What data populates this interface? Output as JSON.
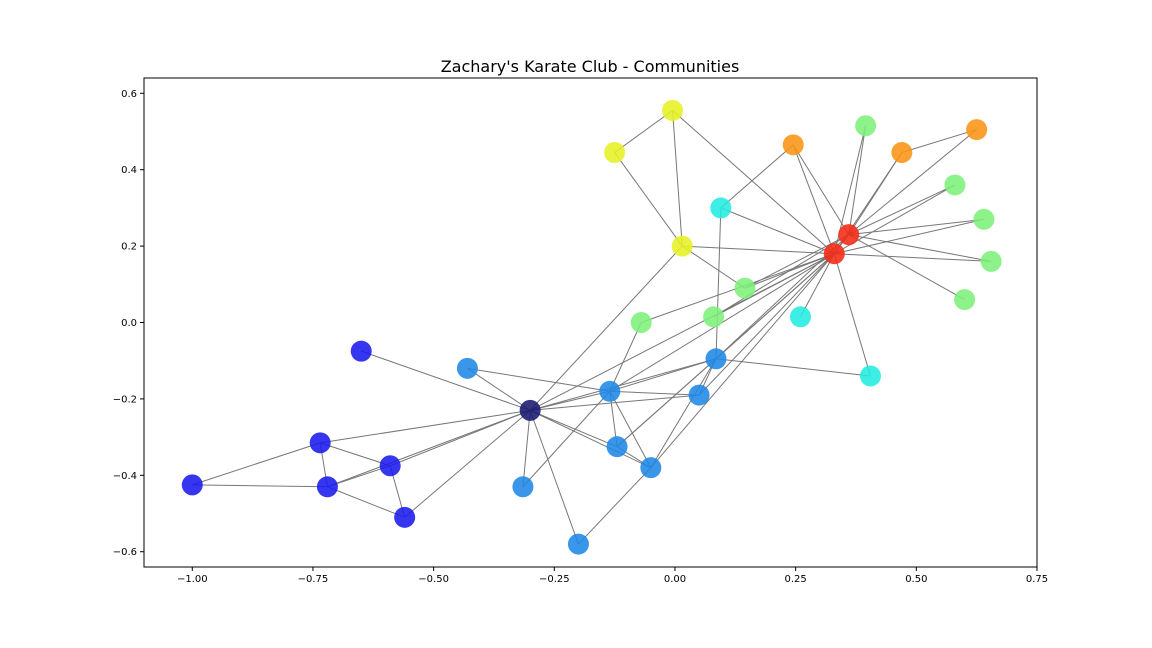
{
  "chart_data": {
    "type": "scatter",
    "subtype": "network-graph",
    "title": "Zachary's Karate Club - Communities",
    "xlabel": "",
    "ylabel": "",
    "xlim": [
      -1.1,
      0.75
    ],
    "ylim": [
      -0.64,
      0.64
    ],
    "xticks": [
      -1.0,
      -0.75,
      -0.5,
      -0.25,
      0.0,
      0.25,
      0.5,
      0.75
    ],
    "xtick_labels": [
      "−1.00",
      "−0.75",
      "−0.50",
      "−0.25",
      "0.00",
      "0.25",
      "0.50",
      "0.75"
    ],
    "yticks": [
      -0.6,
      -0.4,
      -0.2,
      0.0,
      0.2,
      0.4,
      0.6
    ],
    "ytick_labels": [
      "−0.6",
      "−0.4",
      "−0.2",
      "0.0",
      "0.2",
      "0.4",
      "0.6"
    ],
    "grid": false,
    "community_colors": {
      "darknavy": "#191970",
      "blue": "#1a1aee",
      "azure": "#1e88e5",
      "cyan": "#22ece0",
      "lightgreen": "#7df07a",
      "yellow": "#e6f022",
      "orange": "#fb9414",
      "red": "#f52a14"
    },
    "edge_color": "#777777",
    "nodes": [
      {
        "id": 0,
        "x": -0.3,
        "y": -0.23,
        "community": "darknavy"
      },
      {
        "id": 1,
        "x": -0.135,
        "y": -0.18,
        "community": "azure"
      },
      {
        "id": 2,
        "x": 0.085,
        "y": -0.095,
        "community": "azure"
      },
      {
        "id": 3,
        "x": -0.12,
        "y": -0.325,
        "community": "azure"
      },
      {
        "id": 4,
        "x": -0.59,
        "y": -0.375,
        "community": "blue"
      },
      {
        "id": 5,
        "x": -0.735,
        "y": -0.315,
        "community": "blue"
      },
      {
        "id": 6,
        "x": -0.72,
        "y": -0.43,
        "community": "blue"
      },
      {
        "id": 7,
        "x": -0.05,
        "y": -0.38,
        "community": "azure"
      },
      {
        "id": 8,
        "x": 0.05,
        "y": -0.19,
        "community": "azure"
      },
      {
        "id": 9,
        "x": -0.315,
        "y": -0.43,
        "community": "azure"
      },
      {
        "id": 10,
        "x": -0.56,
        "y": -0.51,
        "community": "blue"
      },
      {
        "id": 11,
        "x": -0.65,
        "y": -0.075,
        "community": "blue"
      },
      {
        "id": 12,
        "x": -0.43,
        "y": -0.12,
        "community": "azure"
      },
      {
        "id": 13,
        "x": -0.2,
        "y": -0.58,
        "community": "azure"
      },
      {
        "id": 14,
        "x": -1.0,
        "y": -0.425,
        "community": "blue"
      },
      {
        "id": 15,
        "x": 0.095,
        "y": 0.3,
        "community": "cyan"
      },
      {
        "id": 16,
        "x": 0.26,
        "y": 0.015,
        "community": "cyan"
      },
      {
        "id": 17,
        "x": 0.405,
        "y": -0.14,
        "community": "cyan"
      },
      {
        "id": 18,
        "x": 0.145,
        "y": 0.09,
        "community": "lightgreen"
      },
      {
        "id": 19,
        "x": 0.08,
        "y": 0.015,
        "community": "lightgreen"
      },
      {
        "id": 20,
        "x": -0.07,
        "y": 0.0,
        "community": "lightgreen"
      },
      {
        "id": 21,
        "x": 0.395,
        "y": 0.515,
        "community": "lightgreen"
      },
      {
        "id": 22,
        "x": 0.58,
        "y": 0.36,
        "community": "lightgreen"
      },
      {
        "id": 23,
        "x": 0.64,
        "y": 0.27,
        "community": "lightgreen"
      },
      {
        "id": 24,
        "x": 0.655,
        "y": 0.16,
        "community": "lightgreen"
      },
      {
        "id": 25,
        "x": 0.6,
        "y": 0.06,
        "community": "lightgreen"
      },
      {
        "id": 26,
        "x": -0.005,
        "y": 0.555,
        "community": "yellow"
      },
      {
        "id": 27,
        "x": -0.125,
        "y": 0.445,
        "community": "yellow"
      },
      {
        "id": 28,
        "x": 0.015,
        "y": 0.2,
        "community": "yellow"
      },
      {
        "id": 29,
        "x": 0.245,
        "y": 0.465,
        "community": "orange"
      },
      {
        "id": 30,
        "x": 0.47,
        "y": 0.445,
        "community": "orange"
      },
      {
        "id": 31,
        "x": 0.625,
        "y": 0.505,
        "community": "orange"
      },
      {
        "id": 32,
        "x": 0.36,
        "y": 0.23,
        "community": "red"
      },
      {
        "id": 33,
        "x": 0.33,
        "y": 0.18,
        "community": "red"
      }
    ],
    "edges": [
      [
        0,
        1
      ],
      [
        0,
        2
      ],
      [
        0,
        3
      ],
      [
        0,
        4
      ],
      [
        0,
        5
      ],
      [
        0,
        6
      ],
      [
        0,
        7
      ],
      [
        0,
        8
      ],
      [
        0,
        9
      ],
      [
        0,
        10
      ],
      [
        0,
        11
      ],
      [
        0,
        12
      ],
      [
        0,
        13
      ],
      [
        0,
        28
      ],
      [
        0,
        33
      ],
      [
        4,
        5
      ],
      [
        4,
        6
      ],
      [
        4,
        10
      ],
      [
        5,
        6
      ],
      [
        5,
        14
      ],
      [
        6,
        14
      ],
      [
        6,
        10
      ],
      [
        1,
        2
      ],
      [
        1,
        3
      ],
      [
        1,
        7
      ],
      [
        1,
        8
      ],
      [
        1,
        9
      ],
      [
        1,
        12
      ],
      [
        1,
        20
      ],
      [
        1,
        33
      ],
      [
        2,
        3
      ],
      [
        2,
        7
      ],
      [
        2,
        8
      ],
      [
        2,
        15
      ],
      [
        2,
        17
      ],
      [
        2,
        32
      ],
      [
        2,
        33
      ],
      [
        3,
        7
      ],
      [
        3,
        33
      ],
      [
        7,
        13
      ],
      [
        7,
        33
      ],
      [
        8,
        33
      ],
      [
        15,
        33
      ],
      [
        16,
        33
      ],
      [
        18,
        33
      ],
      [
        18,
        32
      ],
      [
        19,
        33
      ],
      [
        19,
        32
      ],
      [
        20,
        33
      ],
      [
        21,
        32
      ],
      [
        21,
        33
      ],
      [
        22,
        32
      ],
      [
        22,
        33
      ],
      [
        23,
        32
      ],
      [
        23,
        33
      ],
      [
        24,
        32
      ],
      [
        24,
        33
      ],
      [
        25,
        32
      ],
      [
        26,
        27
      ],
      [
        26,
        28
      ],
      [
        26,
        33
      ],
      [
        27,
        28
      ],
      [
        28,
        33
      ],
      [
        28,
        18
      ],
      [
        29,
        15
      ],
      [
        29,
        33
      ],
      [
        29,
        32
      ],
      [
        30,
        32
      ],
      [
        30,
        33
      ],
      [
        31,
        32
      ],
      [
        31,
        30
      ],
      [
        32,
        33
      ],
      [
        17,
        33
      ]
    ]
  }
}
